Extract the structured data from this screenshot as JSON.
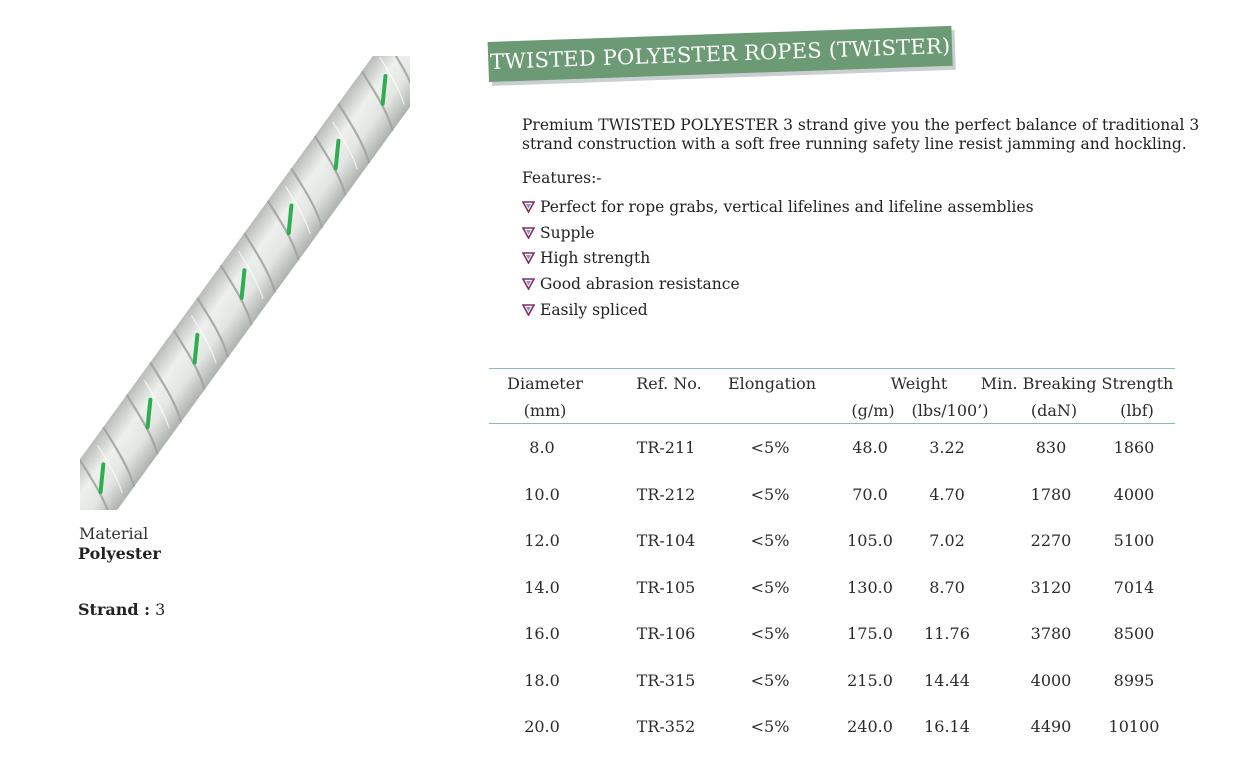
{
  "title": "TWISTED POLYESTER ROPES (TWISTER)",
  "intro": "Premium TWISTED POLYESTER 3 strand give you the perfect balance of traditional 3 strand construction with a soft free running safety line resist jamming and hockling.",
  "features_label": "Features:-",
  "features": [
    "Perfect for rope grabs, vertical lifelines and lifeline assemblies",
    "Supple",
    "High strength",
    "Good abrasion resistance",
    "Easily spliced"
  ],
  "material": {
    "label": "Material",
    "value": "Polyester"
  },
  "strand": {
    "label": "Strand :",
    "value": "3"
  },
  "table": {
    "headers": {
      "diameter": "Diameter",
      "diameter_unit": "(mm)",
      "ref": "Ref. No.",
      "elongation": "Elongation",
      "weight": "Weight",
      "weight_unit_1": "(g/m)",
      "weight_unit_2": "(lbs/100’)",
      "mbs": "Min. Breaking Strength",
      "mbs_unit_1": "(daN)",
      "mbs_unit_2": "(lbf)"
    },
    "rows": [
      [
        "8.0",
        "TR-211",
        "<5%",
        "48.0",
        "3.22",
        "830",
        "1860"
      ],
      [
        "10.0",
        "TR-212",
        "<5%",
        "70.0",
        "4.70",
        "1780",
        "4000"
      ],
      [
        "12.0",
        "TR-104",
        "<5%",
        "105.0",
        "7.02",
        "2270",
        "5100"
      ],
      [
        "14.0",
        "TR-105",
        "<5%",
        "130.0",
        "8.70",
        "3120",
        "7014"
      ],
      [
        "16.0",
        "TR-106",
        "<5%",
        "175.0",
        "11.76",
        "3780",
        "8500"
      ],
      [
        "18.0",
        "TR-315",
        "<5%",
        "215.0",
        "14.44",
        "4000",
        "8995"
      ],
      [
        "20.0",
        "TR-352",
        "<5%",
        "240.0",
        "16.14",
        "4490",
        "10100"
      ]
    ]
  },
  "colors": {
    "title_band": "#6b9a74",
    "table_rule": "#8db4c8",
    "bullet": "#8a2a5a",
    "rope_tracer": "#2fae4f"
  }
}
